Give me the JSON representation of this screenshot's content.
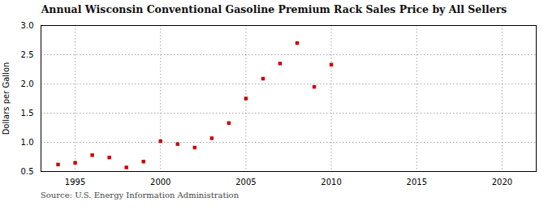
{
  "chart_data": {
    "type": "scatter",
    "title": "Annual Wisconsin Conventional Gasoline Premium Rack Sales Price by All Sellers",
    "ylabel": "Dollars per Gallon",
    "annotation": "Source: U.S. Energy Information Administration",
    "x": [
      1994,
      1995,
      1996,
      1997,
      1998,
      1999,
      2000,
      2001,
      2002,
      2003,
      2004,
      2005,
      2006,
      2007,
      2008,
      2009,
      2010
    ],
    "values": [
      0.62,
      0.65,
      0.78,
      0.74,
      0.57,
      0.67,
      1.02,
      0.97,
      0.91,
      1.07,
      1.33,
      1.75,
      2.09,
      2.35,
      2.7,
      1.95,
      2.33
    ],
    "color": "#cc0000",
    "marker": "square",
    "xlim": [
      1993,
      2022
    ],
    "ylim": [
      0.5,
      3.0
    ],
    "xticks": [
      1995,
      2000,
      2005,
      2010,
      2015,
      2020
    ],
    "yticks": [
      0.5,
      {
        "value": 1.0,
        "label": "1.0"
      },
      1.5,
      {
        "value": 2.0,
        "label": "2.0"
      },
      2.5,
      {
        "value": 3.0,
        "label": "3.0"
      }
    ],
    "grid": true
  }
}
